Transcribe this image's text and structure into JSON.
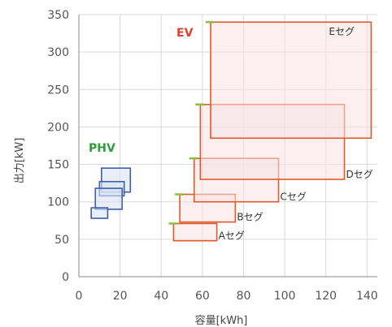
{
  "chart_data": {
    "type": "scatter",
    "xlabel": "容量[kWh]",
    "ylabel": "出力[kW]",
    "xlim": [
      0,
      145
    ],
    "ylim": [
      0,
      350
    ],
    "xticks": [
      0,
      20,
      40,
      60,
      80,
      100,
      120,
      140
    ],
    "yticks": [
      0,
      50,
      100,
      150,
      200,
      250,
      300,
      350
    ],
    "grid": true,
    "groups": [
      {
        "name": "PHV",
        "color": "#3f5fa8",
        "fill": "#dbe3f3",
        "boxes": [
          {
            "x": [
              11,
              25
            ],
            "y": [
              113,
              145
            ]
          },
          {
            "x": [
              10,
              22
            ],
            "y": [
              108,
              127
            ]
          },
          {
            "x": [
              8,
              21
            ],
            "y": [
              90,
              118
            ]
          },
          {
            "x": [
              6,
              14
            ],
            "y": [
              78,
              92
            ]
          }
        ]
      },
      {
        "name": "EV",
        "color": "#e05a2b",
        "fill": "#f7e1e4",
        "boxes": [
          {
            "segment": "Aセグ",
            "x": [
              46,
              67
            ],
            "y": [
              48,
              71
            ]
          },
          {
            "segment": "Bセグ",
            "x": [
              49,
              76
            ],
            "y": [
              73,
              110
            ]
          },
          {
            "segment": "Cセグ",
            "x": [
              56,
              97
            ],
            "y": [
              100,
              158
            ]
          },
          {
            "segment": "Dセグ",
            "x": [
              59,
              129
            ],
            "y": [
              130,
              230
            ]
          },
          {
            "segment": "Eセグ",
            "x": [
              64,
              142
            ],
            "y": [
              185,
              340
            ]
          }
        ]
      }
    ]
  }
}
